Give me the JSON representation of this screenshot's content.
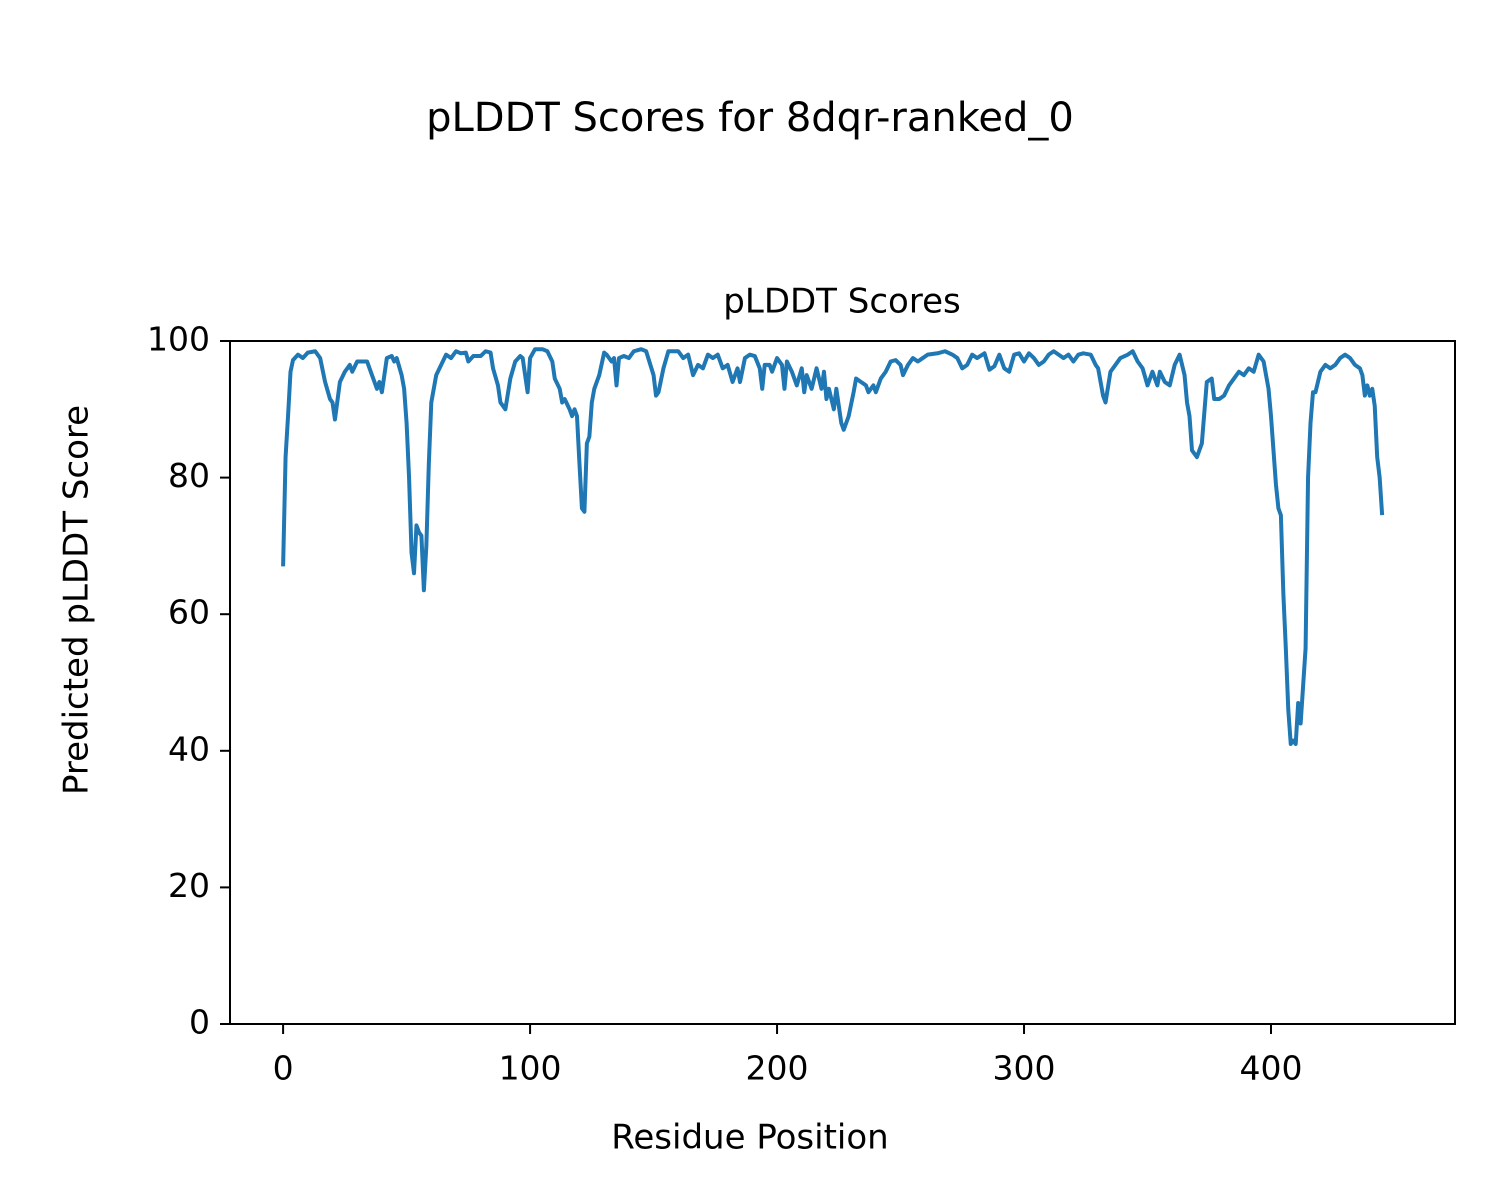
{
  "chart_data": {
    "type": "line",
    "title": "pLDDT Scores for 8dqr-ranked_0",
    "subtitle": "pLDDT Scores",
    "x_label": "Residue Position",
    "y_label": "Predicted pLDDT Score",
    "color": "#1f77b4",
    "xlim": [
      -21.5,
      474.5
    ],
    "ylim": [
      0,
      100
    ],
    "xticks": [
      0,
      100,
      200,
      300,
      400
    ],
    "yticks": [
      0,
      20,
      40,
      60,
      80,
      100
    ],
    "x": [
      0,
      1,
      2,
      3,
      4,
      6,
      8,
      10,
      13,
      15,
      17,
      19,
      20,
      21,
      23,
      25,
      27,
      28,
      30,
      34,
      36,
      38,
      39,
      40,
      42,
      44,
      45,
      46,
      48,
      49,
      50,
      51,
      52,
      53,
      54,
      55,
      56,
      57,
      58,
      59,
      60,
      62,
      64,
      66,
      68,
      70,
      72,
      74,
      75,
      77,
      80,
      82,
      84,
      85,
      87,
      88,
      90,
      92,
      94,
      96,
      97,
      99,
      100,
      102,
      105,
      107,
      109,
      110,
      112,
      113,
      114,
      116,
      117,
      118,
      119,
      120,
      121,
      122,
      123,
      124,
      125,
      126,
      128,
      130,
      131,
      133,
      134,
      135,
      136,
      138,
      140,
      142,
      145,
      147,
      150,
      151,
      152,
      154,
      156,
      160,
      162,
      164,
      166,
      168,
      170,
      172,
      174,
      176,
      178,
      180,
      182,
      184,
      185,
      187,
      189,
      191,
      193,
      194,
      195,
      197,
      198,
      200,
      202,
      203,
      204,
      206,
      208,
      210,
      211,
      212,
      214,
      216,
      218,
      219,
      220,
      221,
      223,
      224,
      226,
      227,
      229,
      231,
      232,
      234,
      236,
      237,
      239,
      240,
      242,
      244,
      246,
      248,
      250,
      251,
      253,
      255,
      257,
      259,
      261,
      265,
      268,
      271,
      273,
      275,
      277,
      279,
      281,
      284,
      286,
      288,
      290,
      292,
      294,
      296,
      298,
      300,
      302,
      304,
      306,
      308,
      310,
      312,
      314,
      316,
      318,
      320,
      322,
      324,
      327,
      329,
      330,
      332,
      333,
      335,
      337,
      339,
      342,
      344,
      346,
      348,
      350,
      352,
      354,
      355,
      357,
      359,
      361,
      363,
      365,
      366,
      367,
      368,
      370,
      372,
      374,
      376,
      377,
      379,
      381,
      383,
      385,
      387,
      389,
      391,
      393,
      395,
      397,
      399,
      400,
      401,
      402,
      403,
      404,
      405,
      406,
      407,
      408,
      409,
      410,
      411,
      412,
      414,
      415,
      416,
      417,
      418,
      420,
      422,
      424,
      426,
      428,
      430,
      432,
      434,
      436,
      437,
      438,
      439,
      440,
      441,
      442,
      443,
      444,
      445
    ],
    "values": [
      67,
      83,
      89,
      95.5,
      97.2,
      98,
      97.5,
      98.3,
      98.5,
      97.5,
      94,
      91.5,
      91,
      88.5,
      94,
      95.5,
      96.5,
      95.5,
      97,
      97,
      95,
      93,
      94,
      92.5,
      97.5,
      97.8,
      97,
      97.5,
      95,
      93,
      88,
      80,
      69,
      66,
      73,
      72,
      71.5,
      63.5,
      70,
      82,
      91,
      95,
      96.5,
      98,
      97.5,
      98.5,
      98.2,
      98.3,
      97,
      97.8,
      97.8,
      98.5,
      98.3,
      96,
      93.5,
      91,
      90,
      94.5,
      97,
      97.8,
      97.5,
      92.5,
      97.5,
      98.8,
      98.8,
      98.5,
      97,
      94.5,
      93,
      91,
      91.5,
      90,
      89,
      90,
      89,
      82,
      75.5,
      75,
      85,
      86,
      91,
      93,
      95,
      98.3,
      98,
      97,
      97.5,
      93.5,
      97.5,
      97.8,
      97.5,
      98.5,
      98.8,
      98.5,
      95,
      92,
      92.5,
      96,
      98.5,
      98.5,
      97.5,
      98,
      95,
      96.5,
      96,
      98,
      97.5,
      98,
      96,
      96.5,
      94,
      96,
      94,
      97.5,
      98,
      97.8,
      96,
      93,
      96.5,
      96.5,
      95.5,
      97.5,
      96.5,
      93,
      97,
      95.5,
      93.5,
      96,
      92.5,
      95,
      93,
      96,
      93,
      95.5,
      91.5,
      93,
      90,
      93,
      88,
      87,
      89,
      92.5,
      94.5,
      94,
      93.5,
      92.5,
      93.5,
      92.5,
      94.5,
      95.5,
      97,
      97.2,
      96.5,
      95,
      96.5,
      97.5,
      97,
      97.5,
      98,
      98.2,
      98.5,
      98,
      97.5,
      96,
      96.5,
      98,
      97.5,
      98.2,
      95.8,
      96.3,
      98,
      96,
      95.5,
      98,
      98.2,
      97,
      98.2,
      97.5,
      96.5,
      97,
      98,
      98.5,
      98,
      97.5,
      98,
      97,
      98,
      98.2,
      98,
      96.5,
      96,
      92,
      91,
      95.5,
      96.5,
      97.5,
      98,
      98.5,
      97,
      96,
      93.5,
      95.5,
      93.5,
      95.5,
      94,
      93.5,
      96.5,
      98,
      95,
      91,
      89,
      84,
      83,
      85,
      94,
      94.5,
      91.5,
      91.5,
      92,
      93.5,
      94.5,
      95.5,
      95,
      96,
      95.5,
      98,
      97,
      93,
      89,
      84,
      79,
      75.5,
      74.5,
      63,
      55,
      46,
      41,
      41.5,
      41,
      47,
      44,
      55,
      80,
      88,
      92.5,
      92.5,
      95.5,
      96.5,
      96,
      96.5,
      97.5,
      98,
      97.5,
      96.5,
      96,
      95,
      92,
      93.5,
      92,
      93,
      90.5,
      83,
      80,
      74.5
    ]
  }
}
